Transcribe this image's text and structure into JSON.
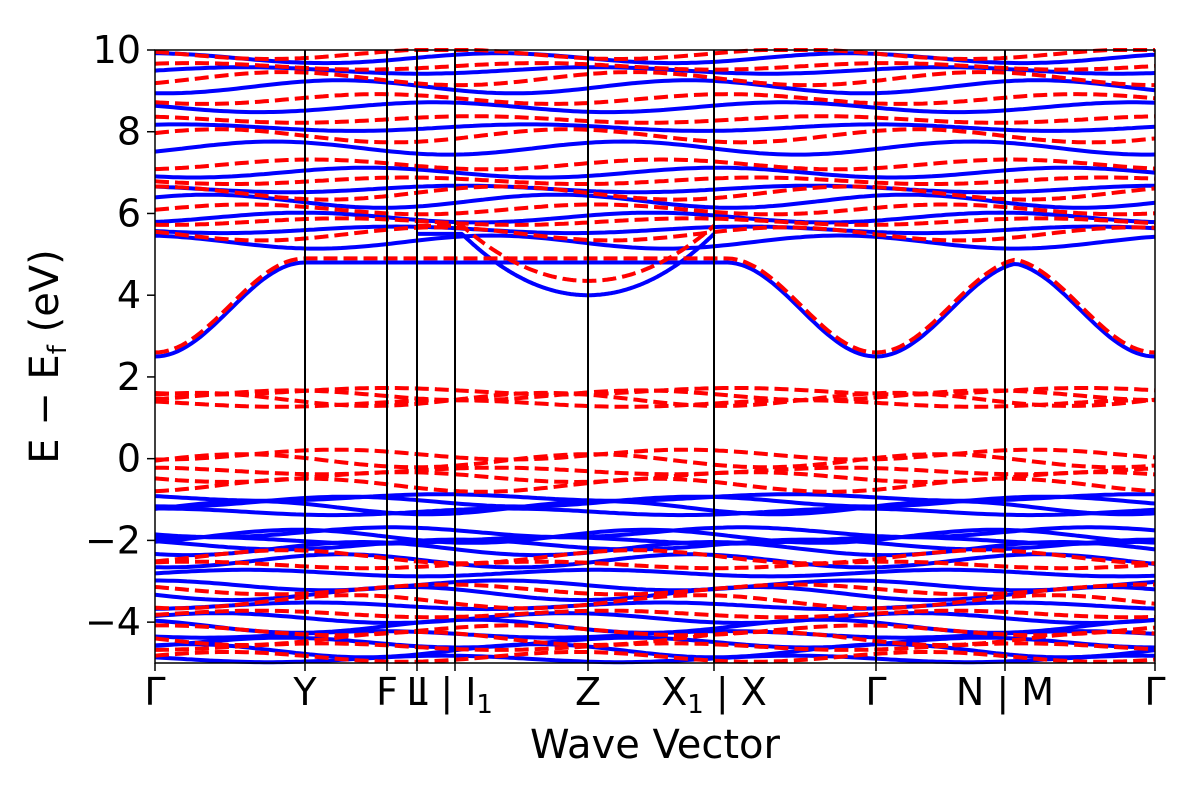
{
  "chart_data": {
    "type": "line",
    "title": "",
    "xlabel": "Wave Vector",
    "ylabel": "E − E_f (eV)",
    "ylabel_parts": {
      "main": "E − E",
      "sub": "f",
      "unit": " (eV)"
    },
    "ylim": [
      -5,
      10
    ],
    "yticks": [
      -4,
      -2,
      0,
      2,
      4,
      6,
      8,
      10
    ],
    "ytick_labels": [
      "−4",
      "−2",
      "0",
      "2",
      "4",
      "6",
      "8",
      "10"
    ],
    "xlim": [
      0,
      1
    ],
    "kpath": [
      {
        "label": "Γ",
        "x": 0.0
      },
      {
        "label": "Y",
        "x": 0.15
      },
      {
        "label": "F",
        "x": 0.232
      },
      {
        "label": "L",
        "x": 0.262
      },
      {
        "label": "I",
        "x": 0.262
      },
      {
        "label": "I",
        "sub": "1",
        "x": 0.3
      },
      {
        "label": "Z",
        "x": 0.433
      },
      {
        "label": "X",
        "sub": "1",
        "x": 0.559
      },
      {
        "label": "X",
        "x": 0.559
      },
      {
        "label": "Γ",
        "x": 0.721
      },
      {
        "label": "N",
        "x": 0.85
      },
      {
        "label": "M",
        "x": 0.85
      },
      {
        "label": "Γ",
        "x": 1.0
      }
    ],
    "xtick_labels": [
      {
        "text": "Γ",
        "x": 0.0
      },
      {
        "text": "Y",
        "x": 0.15
      },
      {
        "text": "F",
        "x": 0.232
      },
      {
        "text": "L",
        "x": 0.262
      },
      {
        "text": "I | I",
        "sub": "1",
        "x": 0.3
      },
      {
        "text": "Z",
        "x": 0.433
      },
      {
        "text": "X",
        "sub": "1",
        "suffix": " | X",
        "x": 0.559
      },
      {
        "text": "Γ",
        "x": 0.721
      },
      {
        "text": "N | M",
        "x": 0.85
      },
      {
        "text": "Γ",
        "x": 1.0
      }
    ],
    "vlines": [
      0.15,
      0.232,
      0.262,
      0.3,
      0.433,
      0.559,
      0.721,
      0.85
    ],
    "series": [
      {
        "style": "solid",
        "color": "#0000ff",
        "bands": [
          {
            "kind": "cb",
            "min": 2.5,
            "y_top": 4.8,
            "y_ymax": 4.8
          },
          {
            "kind": "cb",
            "min": 4.0,
            "x_center": 0.433,
            "y_edge": 5.5
          },
          {
            "kind": "flat",
            "y": [
              5.3,
              5.6,
              5.9,
              6.3,
              6.6,
              7.0,
              7.6,
              8.1,
              8.6,
              9.1,
              9.5,
              9.8
            ]
          },
          {
            "kind": "flat",
            "y": [
              -0.95,
              -1.05,
              -1.2,
              -1.3
            ]
          },
          {
            "kind": "flat",
            "y": [
              -1.8,
              -1.9,
              -2.0,
              -2.1,
              -2.2
            ]
          },
          {
            "kind": "flat",
            "y": [
              -2.5,
              -2.8,
              -3.1,
              -3.3,
              -3.6,
              -3.9,
              -4.1,
              -4.3,
              -4.5,
              -4.7,
              -4.9
            ]
          }
        ]
      },
      {
        "style": "dashed",
        "color": "#ff0000",
        "bands": [
          {
            "kind": "cb",
            "min": 2.6,
            "y_top": 4.9,
            "y_ymax": 4.9
          },
          {
            "kind": "cb",
            "min": 4.35,
            "x_center": 0.433,
            "y_edge": 5.7
          },
          {
            "kind": "flat",
            "y": [
              5.5,
              5.8,
              6.1,
              6.5,
              6.8,
              7.2,
              7.9,
              8.3,
              8.8,
              9.3,
              9.6,
              9.9
            ]
          },
          {
            "kind": "flat",
            "y": [
              1.65,
              1.55,
              1.45,
              1.35
            ]
          },
          {
            "kind": "flat",
            "y": [
              0.1,
              -0.05,
              -0.3,
              -0.45,
              -0.65
            ]
          },
          {
            "kind": "flat",
            "y": [
              -2.4,
              -2.6,
              -3.2,
              -3.5,
              -3.8,
              -4.2,
              -4.4,
              -4.6,
              -4.85
            ]
          }
        ]
      }
    ]
  }
}
